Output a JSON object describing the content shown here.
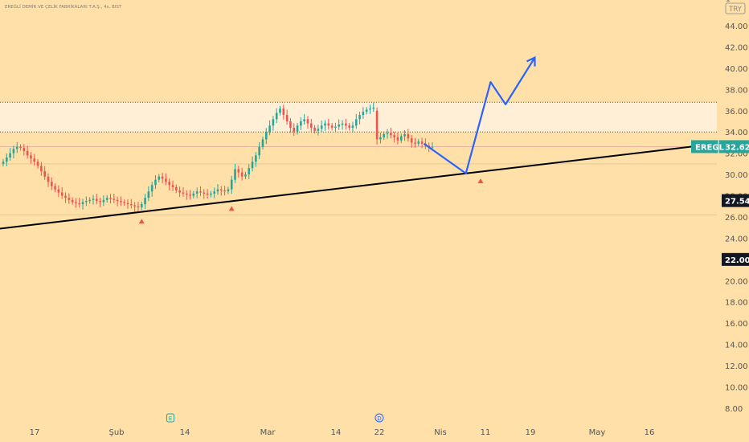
{
  "symbol_header": "EREĞLİ DEMİR VE ÇELİK FABRİKALARI T.A.Ş., 4s, BIST",
  "currency_button": "TRY",
  "colors": {
    "background": "#ffe0a8",
    "up_candle": "#26a69a",
    "down_candle": "#ef5350",
    "trendline": "#000000",
    "projection": "#2962ff",
    "zone_fill": "#ffefd6",
    "badge_green": "#26a69a",
    "badge_black": "#131722",
    "axis_text": "#555555"
  },
  "chart_data": {
    "type": "candlestick",
    "y_axis": {
      "min": 8,
      "max": 44,
      "ticks": [
        "44.00",
        "42.00",
        "40.00",
        "38.00",
        "36.00",
        "34.00",
        "32.00",
        "30.00",
        "28.00",
        "26.00",
        "24.00",
        "22.00",
        "20.00",
        "18.00",
        "16.00",
        "14.00",
        "12.00",
        "10.00",
        "8.00"
      ]
    },
    "x_axis_labels": [
      "17",
      "Şub",
      "14",
      "Mar",
      "14",
      "22",
      "Nis",
      "11",
      "19",
      "May",
      "16"
    ],
    "price_badges": [
      {
        "label": "EREGL",
        "value": "32.62",
        "price": 32.62,
        "color": "green"
      },
      {
        "value": "27.54",
        "price": 27.54,
        "color": "black"
      },
      {
        "value": "22.00",
        "price": 22.0,
        "color": "black"
      }
    ],
    "resistance_zone": {
      "top": 36.8,
      "bottom": 34.0
    },
    "horizontal_levels": [
      32.62,
      31.0,
      26.2
    ],
    "trendline": {
      "from": {
        "x": 0,
        "y": 24.9
      },
      "to": {
        "x": 1,
        "y": 32.9
      }
    },
    "candle_closes": [
      31.2,
      31.6,
      32.0,
      32.4,
      32.6,
      32.5,
      32.2,
      31.8,
      31.5,
      31.2,
      30.8,
      30.3,
      29.8,
      29.3,
      28.9,
      28.6,
      28.3,
      28.0,
      27.8,
      27.6,
      27.4,
      27.3,
      27.2,
      27.4,
      27.5,
      27.6,
      27.7,
      27.5,
      27.4,
      27.6,
      27.8,
      27.7,
      27.6,
      27.5,
      27.4,
      27.3,
      27.2,
      27.1,
      27.0,
      26.9,
      27.2,
      27.8,
      28.4,
      29.0,
      29.5,
      29.8,
      29.6,
      29.3,
      29.0,
      28.8,
      28.5,
      28.3,
      28.2,
      28.1,
      28.0,
      28.2,
      28.4,
      28.3,
      28.2,
      28.1,
      28.2,
      28.4,
      28.6,
      28.5,
      28.4,
      28.6,
      29.5,
      30.5,
      30.2,
      29.8,
      30.0,
      30.6,
      31.2,
      31.8,
      32.6,
      33.3,
      34.0,
      34.6,
      35.2,
      35.8,
      36.2,
      35.6,
      35.0,
      34.4,
      34.0,
      34.6,
      35.0,
      35.2,
      34.8,
      34.4,
      34.1,
      34.3,
      34.6,
      34.8,
      34.6,
      34.4,
      34.5,
      34.7,
      34.8,
      34.6,
      34.4,
      34.6,
      35.2,
      35.6,
      35.9,
      36.1,
      36.2,
      36.3,
      33.3,
      33.5,
      33.8,
      33.9,
      33.7,
      33.5,
      33.2,
      33.6,
      33.8,
      33.4,
      33.0,
      32.9,
      33.1,
      32.9,
      32.7,
      32.6,
      32.6
    ],
    "signal_markers": [
      {
        "candle_index": 40,
        "price": 25.6
      },
      {
        "candle_index": 66,
        "price": 26.8
      },
      {
        "candle_index": 130,
        "price": 29.4
      }
    ],
    "projection_path": [
      {
        "x_fraction": 0.566,
        "price": 32.9
      },
      {
        "x_fraction": 0.622,
        "price": 30.1
      },
      {
        "x_fraction": 0.655,
        "price": 38.7
      },
      {
        "x_fraction": 0.675,
        "price": 36.6
      },
      {
        "x_fraction": 0.714,
        "price": 41.0
      }
    ],
    "event_badges": [
      {
        "label": "E",
        "x_label_index": 2
      },
      {
        "label": "D",
        "x_label_index": 5
      }
    ]
  }
}
